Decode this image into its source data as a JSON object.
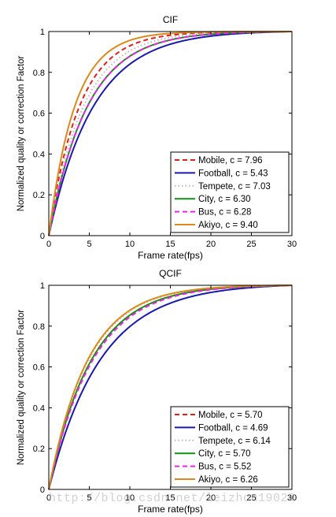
{
  "watermark": "http://blog.csdn.net/leizhou19020",
  "chart_data": [
    {
      "type": "line",
      "title": "CIF",
      "xlabel": "Frame rate(fps)",
      "ylabel": "Normalized quality or correction Factor",
      "xlim": [
        0,
        30
      ],
      "ylim": [
        0,
        1
      ],
      "xticks": [
        0,
        5,
        10,
        15,
        20,
        25,
        30
      ],
      "yticks": [
        0,
        0.2,
        0.4,
        0.6,
        0.8,
        1
      ],
      "ytick_labels": [
        "0",
        "0.2",
        "0.4",
        "0.6",
        "0.8",
        "1"
      ],
      "grid": false,
      "legend_position": "bottom-right",
      "formula": "(1 - exp(-c*t/30)) / (1 - exp(-c))",
      "series": [
        {
          "name": "Mobile, c = 7.96",
          "c": 7.96,
          "color": "#e02020",
          "style": "dashed"
        },
        {
          "name": "Football, c = 5.43",
          "c": 5.43,
          "color": "#1a1aa8",
          "style": "solid"
        },
        {
          "name": "Tempete, c = 7.03",
          "c": 7.03,
          "color": "#b8b8b8",
          "style": "dotted"
        },
        {
          "name": "City, c = 6.30",
          "c": 6.3,
          "color": "#149014",
          "style": "solid"
        },
        {
          "name": "Bus, c = 6.28",
          "c": 6.28,
          "color": "#ee22ee",
          "style": "dashed"
        },
        {
          "name": "Akiyo, c = 9.40",
          "c": 9.4,
          "color": "#d98a1c",
          "style": "solid"
        }
      ]
    },
    {
      "type": "line",
      "title": "QCIF",
      "xlabel": "Frame rate(fps)",
      "ylabel": "Normalized quality or correction Factor",
      "xlim": [
        0,
        30
      ],
      "ylim": [
        0,
        1
      ],
      "xticks": [
        0,
        5,
        10,
        15,
        20,
        25,
        30
      ],
      "yticks": [
        0,
        0.2,
        0.4,
        0.6,
        0.8,
        1
      ],
      "ytick_labels": [
        "0",
        "0.2",
        "0.4",
        "0.6",
        "0.8",
        "1"
      ],
      "grid": false,
      "legend_position": "bottom-right",
      "formula": "(1 - exp(-c*t/30)) / (1 - exp(-c))",
      "series": [
        {
          "name": "Mobile, c = 5.70",
          "c": 5.7,
          "color": "#e02020",
          "style": "dashed"
        },
        {
          "name": "Football, c = 4.69",
          "c": 4.69,
          "color": "#1a1aa8",
          "style": "solid"
        },
        {
          "name": "Tempete, c = 6.14",
          "c": 6.14,
          "color": "#b8b8b8",
          "style": "dotted"
        },
        {
          "name": "City, c = 5.70",
          "c": 5.7,
          "color": "#149014",
          "style": "solid"
        },
        {
          "name": "Bus, c = 5.52",
          "c": 5.52,
          "color": "#ee22ee",
          "style": "dashed"
        },
        {
          "name": "Akiyo, c = 6.26",
          "c": 6.26,
          "color": "#d98a1c",
          "style": "solid"
        }
      ]
    }
  ]
}
